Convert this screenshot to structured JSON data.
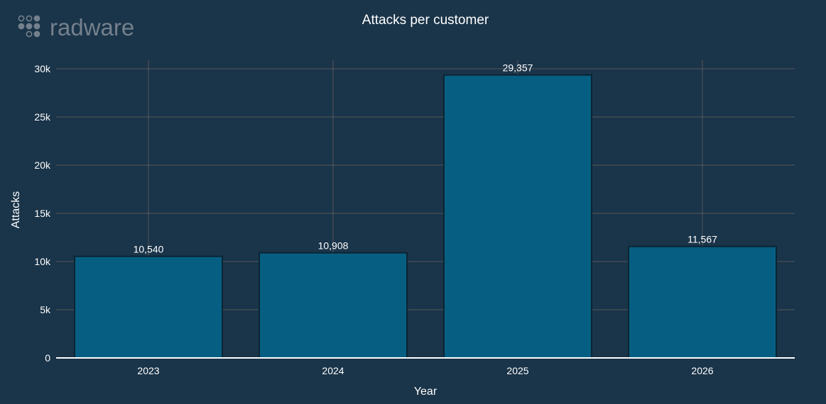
{
  "logo": {
    "text": "radware"
  },
  "colors": {
    "background": "#1a3449",
    "bar_fill": "#065f82",
    "bar_stroke": "#0b2433",
    "grid": "#55595c",
    "axis_line": "#ffffff",
    "text": "#ffffff",
    "logo": "#74808c"
  },
  "chart_data": {
    "type": "bar",
    "title": "Attacks per customer",
    "xlabel": "Year",
    "ylabel": "Attacks",
    "categories": [
      "2023",
      "2024",
      "2025",
      "2026"
    ],
    "values": [
      10540,
      10908,
      29357,
      11567
    ],
    "data_labels": [
      "10,540",
      "10,908",
      "29,357",
      "11,567"
    ],
    "ylim": [
      0,
      30000
    ],
    "yticks": [
      0,
      5000,
      10000,
      15000,
      20000,
      25000,
      30000
    ],
    "ytick_labels": [
      "0",
      "5k",
      "10k",
      "15k",
      "20k",
      "25k",
      "30k"
    ],
    "grid": true,
    "legend": "none"
  }
}
